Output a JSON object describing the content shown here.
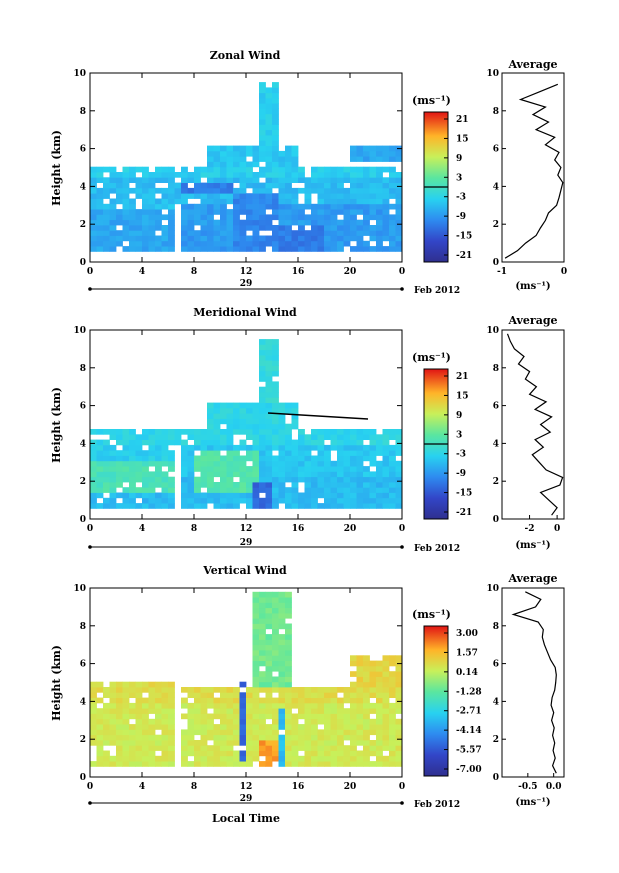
{
  "figure": {
    "xlabel": "Local Time",
    "date_label": "29",
    "month_label": "Feb 2012",
    "average_title": "Average",
    "unit_label": "(ms⁻¹)",
    "height_label": "Height (km)"
  },
  "chart_data": [
    {
      "type": "heatmap",
      "title": "Zonal Wind",
      "xlabel": "",
      "ylabel": "Height (km)",
      "xlim": [
        0,
        24
      ],
      "ylim": [
        0,
        10
      ],
      "x_ticks": [
        "0",
        "4",
        "8",
        "12",
        "16",
        "20",
        "0"
      ],
      "y_ticks": [
        "0",
        "2",
        "4",
        "6",
        "8",
        "10"
      ],
      "colorbar": {
        "label": "(ms⁻¹)",
        "ticks": [
          "21",
          "15",
          "9",
          "3",
          "-3",
          "-9",
          "-15",
          "-21"
        ],
        "range": [
          -24,
          24
        ]
      },
      "data_blocks": [
        {
          "t0": 0,
          "t1": 6.2,
          "h0": 0.3,
          "h1": 2.6,
          "value": -8
        },
        {
          "t0": 0,
          "t1": 6.2,
          "h0": 2.6,
          "h1": 3.0,
          "value": -5
        },
        {
          "t0": 6.6,
          "t1": 24,
          "h0": 0.3,
          "h1": 2.9,
          "value": -9
        },
        {
          "t0": 0,
          "t1": 24,
          "h0": 3.0,
          "h1": 4.3,
          "value": -6
        },
        {
          "t0": 7,
          "t1": 11,
          "h0": 3.5,
          "h1": 4.2,
          "value": -12
        },
        {
          "t0": 11,
          "t1": 14.5,
          "h0": 0.4,
          "h1": 3.5,
          "value": -11
        },
        {
          "t0": 14.5,
          "t1": 18,
          "h0": 0.5,
          "h1": 1.8,
          "value": -12
        },
        {
          "t0": 0,
          "t1": 24,
          "h0": 4.3,
          "h1": 4.8,
          "value": -4
        },
        {
          "t0": 9,
          "t1": 16,
          "h0": 4.8,
          "h1": 6.0,
          "value": -5
        },
        {
          "t0": 12.8,
          "t1": 14.2,
          "h0": 6.0,
          "h1": 9.5,
          "value": -4
        },
        {
          "t0": 20,
          "t1": 24,
          "h0": 5.2,
          "h1": 6.0,
          "value": -8
        }
      ],
      "average": {
        "xlim": [
          -1,
          0
        ],
        "x_ticks": [
          "0",
          "-1"
        ],
        "y_ticks": [
          "0",
          "2",
          "4",
          "6",
          "8",
          "10"
        ],
        "xlabel": "(ms⁻¹)",
        "height": [
          0.2,
          0.6,
          1.0,
          1.4,
          1.8,
          2.2,
          2.6,
          3.0,
          3.4,
          3.8,
          4.2,
          4.6,
          5.0,
          5.4,
          5.8,
          6.2,
          6.6,
          7.0,
          7.4,
          7.8,
          8.2,
          8.6,
          9.0,
          9.4
        ],
        "value": [
          -0.95,
          -0.75,
          -0.62,
          -0.45,
          -0.38,
          -0.3,
          -0.25,
          -0.12,
          -0.08,
          -0.05,
          -0.02,
          -0.1,
          -0.05,
          -0.15,
          -0.08,
          -0.3,
          -0.15,
          -0.45,
          -0.25,
          -0.5,
          -0.3,
          -0.7,
          -0.4,
          -0.1
        ]
      }
    },
    {
      "type": "heatmap",
      "title": "Meridional Wind",
      "xlabel": "",
      "ylabel": "Height (km)",
      "xlim": [
        0,
        24
      ],
      "ylim": [
        0,
        10
      ],
      "x_ticks": [
        "0",
        "4",
        "8",
        "12",
        "16",
        "20",
        "0"
      ],
      "y_ticks": [
        "0",
        "2",
        "4",
        "6",
        "8",
        "10"
      ],
      "colorbar": {
        "label": "(ms⁻¹)",
        "ticks": [
          "21",
          "15",
          "9",
          "3",
          "-3",
          "-9",
          "-15",
          "-21"
        ],
        "range": [
          -24,
          24
        ]
      },
      "data_blocks": [
        {
          "t0": 0,
          "t1": 6.2,
          "h0": 0.3,
          "h1": 1.3,
          "value": -6
        },
        {
          "t0": 0,
          "t1": 6.2,
          "h0": 1.3,
          "h1": 3.0,
          "value": 1
        },
        {
          "t0": 0,
          "t1": 6.2,
          "h0": 3.0,
          "h1": 4.5,
          "value": -4
        },
        {
          "t0": 6.6,
          "t1": 24,
          "h0": 0.3,
          "h1": 2.0,
          "value": -6
        },
        {
          "t0": 6.6,
          "t1": 24,
          "h0": 2.0,
          "h1": 3.9,
          "value": -5
        },
        {
          "t0": 8,
          "t1": 13,
          "h0": 1.2,
          "h1": 3.5,
          "value": 2
        },
        {
          "t0": 12.5,
          "t1": 14,
          "h0": 0.5,
          "h1": 1.8,
          "value": -14
        },
        {
          "t0": 0,
          "t1": 24,
          "h0": 3.9,
          "h1": 4.6,
          "value": -3
        },
        {
          "t0": 9,
          "t1": 16,
          "h0": 4.6,
          "h1": 6.0,
          "value": -3
        },
        {
          "t0": 12.8,
          "t1": 14.2,
          "h0": 6.0,
          "h1": 9.5,
          "value": -2
        }
      ],
      "average": {
        "xlim": [
          -4,
          0.5
        ],
        "x_ticks": [
          "-2",
          "0"
        ],
        "y_ticks": [
          "0",
          "2",
          "4",
          "6",
          "8",
          "10"
        ],
        "xlabel": "(ms⁻¹)",
        "height": [
          0.2,
          0.6,
          1.0,
          1.4,
          1.8,
          2.2,
          2.6,
          3.0,
          3.4,
          3.8,
          4.2,
          4.6,
          5.0,
          5.4,
          5.8,
          6.2,
          6.6,
          7.0,
          7.4,
          7.8,
          8.2,
          8.6,
          9.0,
          9.4,
          9.8
        ],
        "value": [
          -0.4,
          0.0,
          -0.6,
          -1.2,
          0.2,
          0.4,
          -0.8,
          -1.3,
          -1.8,
          -1.0,
          -1.6,
          -0.5,
          -1.2,
          -0.4,
          -1.6,
          -0.8,
          -2.0,
          -1.5,
          -2.3,
          -2.0,
          -2.8,
          -2.4,
          -3.1,
          -3.4,
          -3.6
        ]
      }
    },
    {
      "type": "heatmap",
      "title": "Vertical Wind",
      "xlabel": "Local Time",
      "ylabel": "Height (km)",
      "xlim": [
        0,
        24
      ],
      "ylim": [
        0,
        10
      ],
      "x_ticks": [
        "0",
        "4",
        "8",
        "12",
        "16",
        "20",
        "0"
      ],
      "y_ticks": [
        "0",
        "2",
        "4",
        "6",
        "8",
        "10"
      ],
      "colorbar": {
        "label": "(ms⁻¹)",
        "ticks": [
          "3.00",
          "1.57",
          "0.14",
          "-1.28",
          "-2.71",
          "-4.14",
          "-5.57",
          "-7.00"
        ],
        "range": [
          -8.0,
          4.0
        ]
      },
      "data_blocks": [
        {
          "t0": 0,
          "t1": 6.2,
          "h0": 0.3,
          "h1": 3.8,
          "value": 0.6
        },
        {
          "t0": 0,
          "t1": 6.2,
          "h0": 3.8,
          "h1": 4.8,
          "value": 1.0
        },
        {
          "t0": 6.6,
          "t1": 24,
          "h0": 0.3,
          "h1": 3.8,
          "value": 0.6
        },
        {
          "t0": 6.6,
          "t1": 24,
          "h0": 3.8,
          "h1": 4.6,
          "value": 1.0
        },
        {
          "t0": 13.0,
          "t1": 14.4,
          "h0": 0.5,
          "h1": 1.8,
          "value": 2.3
        },
        {
          "t0": 11.2,
          "t1": 11.6,
          "h0": 0.6,
          "h1": 4.8,
          "value": -5.5
        },
        {
          "t0": 14.2,
          "t1": 14.6,
          "h0": 0.4,
          "h1": 3.5,
          "value": -3.5
        },
        {
          "t0": 12.5,
          "t1": 15.5,
          "h0": 4.6,
          "h1": 9.8,
          "value": -0.9
        },
        {
          "t0": 20,
          "t1": 24,
          "h0": 4.6,
          "h1": 6.2,
          "value": 1.2
        }
      ],
      "average": {
        "xlim": [
          -1.0,
          0.2
        ],
        "x_ticks": [
          "-0.5",
          "0.0"
        ],
        "y_ticks": [
          "0",
          "2",
          "4",
          "6",
          "8",
          "10"
        ],
        "xlabel": "(ms⁻¹)",
        "height": [
          0.2,
          0.6,
          1.0,
          1.4,
          1.8,
          2.2,
          2.6,
          3.0,
          3.4,
          3.8,
          4.2,
          4.6,
          5.0,
          5.4,
          5.8,
          6.2,
          6.6,
          7.0,
          7.4,
          7.8,
          8.2,
          8.6,
          9.0,
          9.4,
          9.8
        ],
        "value": [
          0.05,
          -0.02,
          0.03,
          -0.01,
          0.02,
          -0.02,
          0.01,
          -0.04,
          0.0,
          -0.05,
          -0.03,
          0.02,
          0.04,
          0.05,
          0.03,
          -0.06,
          -0.12,
          -0.18,
          -0.22,
          -0.2,
          -0.3,
          -0.78,
          -0.35,
          -0.25,
          -0.55
        ]
      }
    }
  ]
}
